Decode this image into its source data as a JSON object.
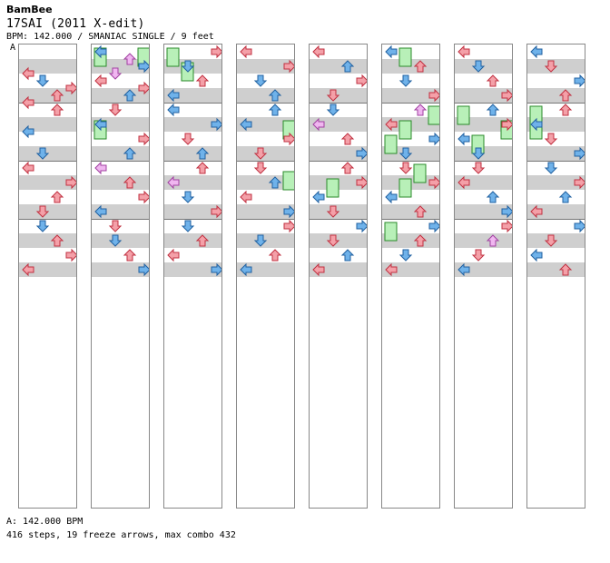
{
  "header": {
    "author": "BamBee",
    "title": "17SAI (2011 X-edit)",
    "info": "BPM: 142.000 / SMANIAC SINGLE / 9 feet",
    "marker": "A"
  },
  "footer": {
    "bpm_note": "A: 142.000 BPM",
    "stats": "416 steps, 19 freeze arrows, max combo 432"
  },
  "colors": {
    "red": "#f4a0a8",
    "blue": "#6fb2ea",
    "pink": "#f0b6f0",
    "freeze": "#b8f0b8",
    "stripe": "#cfcfcf"
  },
  "chart": {
    "columns": 8,
    "measures_per_column": 4,
    "lanes": [
      "left",
      "down",
      "up",
      "right"
    ],
    "measures": [
      {
        "n": [
          [
            1.5,
            0,
            "r"
          ],
          [
            2,
            1,
            "b"
          ],
          [
            2.5,
            3,
            "r"
          ],
          [
            3,
            2,
            "r"
          ],
          [
            3.5,
            0,
            "r"
          ]
        ]
      },
      {
        "n": [
          [
            0,
            2,
            "r"
          ],
          [
            1.5,
            0,
            "b"
          ],
          [
            3,
            1,
            "b"
          ]
        ]
      },
      {
        "n": [
          [
            0,
            0,
            "r"
          ],
          [
            1,
            3,
            "r"
          ],
          [
            2,
            2,
            "r"
          ],
          [
            3,
            1,
            "r"
          ]
        ]
      },
      {
        "n": [
          [
            0,
            1,
            "b"
          ],
          [
            1,
            2,
            "r"
          ],
          [
            2,
            3,
            "r"
          ],
          [
            3,
            0,
            "r"
          ]
        ]
      },
      {
        "n": [
          [
            0,
            0,
            "b"
          ],
          [
            0.5,
            2,
            "p"
          ],
          [
            1,
            3,
            "b"
          ],
          [
            1.5,
            1,
            "p"
          ],
          [
            2,
            0,
            "r"
          ],
          [
            2.5,
            3,
            "r"
          ],
          [
            3,
            2,
            "b"
          ]
        ]
      },
      {
        "n": [
          [
            0,
            1,
            "r"
          ],
          [
            1,
            0,
            "b"
          ],
          [
            2,
            3,
            "r"
          ],
          [
            3,
            2,
            "b"
          ]
        ]
      },
      {
        "n": [
          [
            0,
            0,
            "p"
          ],
          [
            1,
            2,
            "r"
          ],
          [
            2,
            3,
            "r"
          ],
          [
            3,
            0,
            "b"
          ]
        ]
      },
      {
        "n": [
          [
            0,
            1,
            "r"
          ],
          [
            1,
            1,
            "b"
          ],
          [
            2,
            2,
            "r"
          ],
          [
            3,
            3,
            "b"
          ]
        ]
      },
      {
        "n": [
          [
            0,
            3,
            "r"
          ],
          [
            1,
            1,
            "b"
          ],
          [
            2,
            2,
            "r"
          ],
          [
            3,
            0,
            "b"
          ]
        ]
      },
      {
        "n": [
          [
            0,
            0,
            "b"
          ],
          [
            1,
            3,
            "b"
          ],
          [
            2,
            1,
            "r"
          ],
          [
            3,
            2,
            "b"
          ]
        ]
      },
      {
        "n": [
          [
            0,
            2,
            "r"
          ],
          [
            1,
            0,
            "p"
          ],
          [
            2,
            1,
            "b"
          ],
          [
            3,
            3,
            "r"
          ]
        ]
      },
      {
        "n": [
          [
            0,
            1,
            "b"
          ],
          [
            1,
            2,
            "r"
          ],
          [
            2,
            0,
            "r"
          ],
          [
            3,
            3,
            "b"
          ]
        ]
      },
      {
        "n": [
          [
            0,
            0,
            "r"
          ],
          [
            1,
            3,
            "r"
          ],
          [
            2,
            1,
            "b"
          ],
          [
            3,
            2,
            "b"
          ]
        ]
      },
      {
        "n": [
          [
            0,
            2,
            "b"
          ],
          [
            1,
            0,
            "b"
          ],
          [
            2,
            3,
            "r"
          ],
          [
            3,
            1,
            "r"
          ]
        ]
      },
      {
        "n": [
          [
            0,
            1,
            "r"
          ],
          [
            1,
            2,
            "b"
          ],
          [
            2,
            0,
            "r"
          ],
          [
            3,
            3,
            "b"
          ]
        ]
      },
      {
        "n": [
          [
            0,
            3,
            "r"
          ],
          [
            1,
            1,
            "b"
          ],
          [
            2,
            2,
            "r"
          ],
          [
            3,
            0,
            "b"
          ]
        ]
      },
      {
        "n": [
          [
            0,
            0,
            "r"
          ],
          [
            1,
            2,
            "b"
          ],
          [
            2,
            3,
            "r"
          ],
          [
            3,
            1,
            "r"
          ]
        ]
      },
      {
        "n": [
          [
            0,
            1,
            "b"
          ],
          [
            1,
            0,
            "p"
          ],
          [
            2,
            2,
            "r"
          ],
          [
            3,
            3,
            "b"
          ]
        ]
      },
      {
        "n": [
          [
            0,
            2,
            "r"
          ],
          [
            1,
            3,
            "r"
          ],
          [
            2,
            0,
            "b"
          ],
          [
            3,
            1,
            "r"
          ]
        ]
      },
      {
        "n": [
          [
            0,
            3,
            "b"
          ],
          [
            1,
            1,
            "r"
          ],
          [
            2,
            2,
            "b"
          ],
          [
            3,
            0,
            "r"
          ]
        ]
      },
      {
        "n": [
          [
            0,
            0,
            "b"
          ],
          [
            1,
            2,
            "r"
          ],
          [
            2,
            1,
            "b"
          ],
          [
            3,
            3,
            "r"
          ]
        ]
      },
      {
        "n": [
          [
            0,
            2,
            "p"
          ],
          [
            1,
            0,
            "r"
          ],
          [
            2,
            3,
            "b"
          ],
          [
            3,
            1,
            "b"
          ]
        ]
      },
      {
        "n": [
          [
            0,
            1,
            "r"
          ],
          [
            1,
            3,
            "r"
          ],
          [
            2,
            0,
            "b"
          ],
          [
            3,
            2,
            "r"
          ]
        ]
      },
      {
        "n": [
          [
            0,
            3,
            "b"
          ],
          [
            1,
            2,
            "r"
          ],
          [
            2,
            1,
            "b"
          ],
          [
            3,
            0,
            "r"
          ]
        ]
      },
      {
        "n": [
          [
            0,
            0,
            "r"
          ],
          [
            1,
            1,
            "b"
          ],
          [
            2,
            2,
            "r"
          ],
          [
            3,
            3,
            "r"
          ]
        ]
      },
      {
        "n": [
          [
            0,
            2,
            "b"
          ],
          [
            1,
            3,
            "r"
          ],
          [
            2,
            0,
            "b"
          ],
          [
            3,
            1,
            "b"
          ]
        ]
      },
      {
        "n": [
          [
            0,
            1,
            "r"
          ],
          [
            1,
            0,
            "r"
          ],
          [
            2,
            2,
            "b"
          ],
          [
            3,
            3,
            "b"
          ]
        ]
      },
      {
        "n": [
          [
            0,
            3,
            "r"
          ],
          [
            1,
            2,
            "p"
          ],
          [
            2,
            1,
            "r"
          ],
          [
            3,
            0,
            "b"
          ]
        ]
      },
      {
        "n": [
          [
            0,
            0,
            "b"
          ],
          [
            1,
            1,
            "r"
          ],
          [
            2,
            3,
            "b"
          ],
          [
            3,
            2,
            "r"
          ]
        ]
      },
      {
        "n": [
          [
            0,
            2,
            "r"
          ],
          [
            1,
            0,
            "b"
          ],
          [
            2,
            1,
            "r"
          ],
          [
            3,
            3,
            "b"
          ]
        ]
      },
      {
        "n": [
          [
            0,
            1,
            "b"
          ],
          [
            1,
            3,
            "r"
          ],
          [
            2,
            2,
            "b"
          ],
          [
            3,
            0,
            "r"
          ]
        ]
      },
      {
        "n": [
          [
            0,
            3,
            "b"
          ],
          [
            1,
            1,
            "r"
          ],
          [
            2,
            0,
            "b"
          ],
          [
            3,
            2,
            "r"
          ]
        ]
      }
    ],
    "freezes": [
      {
        "m": 4,
        "lane": 0,
        "start": 0,
        "end": 1
      },
      {
        "m": 4,
        "lane": 3,
        "start": 0,
        "end": 1
      },
      {
        "m": 5,
        "lane": 0,
        "start": 1,
        "end": 2
      },
      {
        "m": 8,
        "lane": 0,
        "start": 0,
        "end": 1
      },
      {
        "m": 8,
        "lane": 1,
        "start": 1,
        "end": 2
      },
      {
        "m": 14,
        "lane": 3,
        "start": 0.5,
        "end": 1.5
      },
      {
        "m": 18,
        "lane": 1,
        "start": 1,
        "end": 2
      },
      {
        "m": 22,
        "lane": 1,
        "start": 1,
        "end": 2
      },
      {
        "m": 23,
        "lane": 0,
        "start": 0,
        "end": 1
      },
      {
        "m": 22,
        "lane": 2,
        "start": 0,
        "end": 1
      },
      {
        "m": 20,
        "lane": 1,
        "start": 0,
        "end": 1
      },
      {
        "m": 21,
        "lane": 1,
        "start": 1,
        "end": 2
      },
      {
        "m": 21,
        "lane": 3,
        "start": 0,
        "end": 1
      },
      {
        "m": 21,
        "lane": 0,
        "start": 2,
        "end": 3
      },
      {
        "m": 25,
        "lane": 0,
        "start": 0,
        "end": 1
      },
      {
        "m": 25,
        "lane": 3,
        "start": 1,
        "end": 2
      },
      {
        "m": 25,
        "lane": 1,
        "start": 2,
        "end": 3
      },
      {
        "m": 29,
        "lane": 0,
        "start": 0,
        "end": 2
      },
      {
        "m": 13,
        "lane": 3,
        "start": 1,
        "end": 2
      }
    ]
  }
}
